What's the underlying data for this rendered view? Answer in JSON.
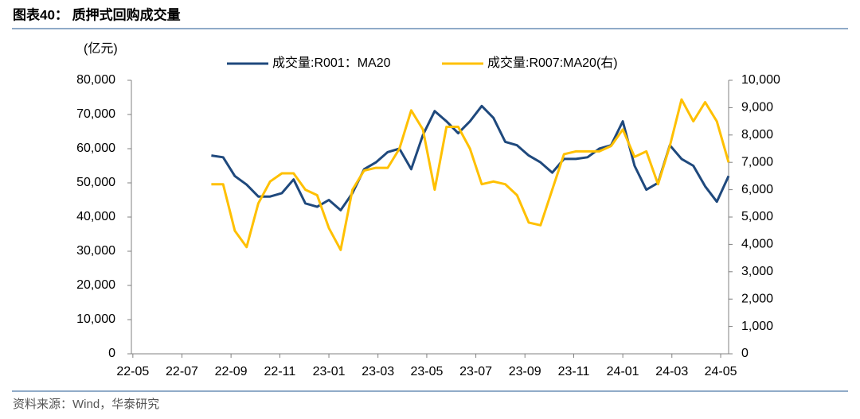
{
  "chart_data": {
    "type": "line",
    "title": "图表40： 质押式回购成交量",
    "y_label": "(亿元)",
    "source": "资料来源：Wind，华泰研究",
    "x": [
      2022.6,
      2022.64,
      2022.68,
      2022.72,
      2022.76,
      2022.8,
      2022.84,
      2022.88,
      2022.92,
      2022.96,
      2023.0,
      2023.04,
      2023.08,
      2023.12,
      2023.16,
      2023.2,
      2023.24,
      2023.28,
      2023.32,
      2023.36,
      2023.4,
      2023.44,
      2023.48,
      2023.52,
      2023.56,
      2023.6,
      2023.64,
      2023.68,
      2023.72,
      2023.76,
      2023.8,
      2023.84,
      2023.88,
      2023.92,
      2023.96,
      2024.0,
      2024.04,
      2024.08,
      2024.12,
      2024.16,
      2024.2,
      2024.24,
      2024.28,
      2024.32,
      2024.36
    ],
    "xlim": [
      2022.328,
      2024.36
    ],
    "xticks": [
      {
        "value": 2022.333,
        "label": "22-05"
      },
      {
        "value": 2022.5,
        "label": "22-07"
      },
      {
        "value": 2022.667,
        "label": "22-09"
      },
      {
        "value": 2022.833,
        "label": "22-11"
      },
      {
        "value": 2023.0,
        "label": "23-01"
      },
      {
        "value": 2023.167,
        "label": "23-03"
      },
      {
        "value": 2023.333,
        "label": "23-05"
      },
      {
        "value": 2023.5,
        "label": "23-07"
      },
      {
        "value": 2023.667,
        "label": "23-09"
      },
      {
        "value": 2023.833,
        "label": "23-11"
      },
      {
        "value": 2024.0,
        "label": "24-01"
      },
      {
        "value": 2024.167,
        "label": "24-03"
      },
      {
        "value": 2024.333,
        "label": "24-05"
      }
    ],
    "ylim": [
      0,
      80000
    ],
    "yticks": [
      0,
      {
        "value": 10000,
        "label": "10,000"
      },
      {
        "value": 20000,
        "label": "20,000"
      },
      {
        "value": 30000,
        "label": "30,000"
      },
      {
        "value": 40000,
        "label": "40,000"
      },
      {
        "value": 50000,
        "label": "50,000"
      },
      {
        "value": 60000,
        "label": "60,000"
      },
      {
        "value": 70000,
        "label": "70,000"
      },
      {
        "value": 80000,
        "label": "80,000"
      }
    ],
    "y2lim": [
      0,
      10000
    ],
    "y2ticks": [
      0,
      {
        "value": 1000,
        "label": "1,000"
      },
      {
        "value": 2000,
        "label": "2,000"
      },
      {
        "value": 3000,
        "label": "3,000"
      },
      {
        "value": 4000,
        "label": "4,000"
      },
      {
        "value": 5000,
        "label": "5,000"
      },
      {
        "value": 6000,
        "label": "6,000"
      },
      {
        "value": 7000,
        "label": "7,000"
      },
      {
        "value": 8000,
        "label": "8,000"
      },
      {
        "value": 9000,
        "label": "9,000"
      },
      {
        "value": 10000,
        "label": "10,000"
      }
    ],
    "series": [
      {
        "name": "成交量:R001：MA20",
        "color": "#1f497d",
        "axis": "y",
        "values": [
          58000,
          57500,
          52000,
          49500,
          46000,
          46000,
          47000,
          51000,
          44000,
          43000,
          45000,
          42000,
          47000,
          54000,
          56000,
          59000,
          60000,
          54000,
          64000,
          71000,
          68000,
          64500,
          68000,
          72500,
          69000,
          62000,
          61000,
          58000,
          56000,
          53000,
          57000,
          57000,
          57500,
          60000,
          61000,
          68000,
          55000,
          48000,
          50000,
          61000,
          57000,
          55000,
          49000,
          44500,
          52000
        ]
      },
      {
        "name": "成交量:R007:MA20(右)",
        "color": "#ffc000",
        "axis": "y2",
        "values": [
          6200,
          6200,
          4500,
          3900,
          5500,
          6300,
          6600,
          6600,
          6000,
          5800,
          4600,
          3800,
          6000,
          6700,
          6800,
          6800,
          7500,
          8900,
          8200,
          6000,
          8300,
          8300,
          7500,
          6200,
          6300,
          6200,
          5800,
          4800,
          4700,
          6000,
          7300,
          7400,
          7400,
          7400,
          7600,
          8200,
          7200,
          7400,
          6200,
          7600,
          9300,
          8500,
          9200,
          8500,
          7000
        ]
      }
    ]
  }
}
